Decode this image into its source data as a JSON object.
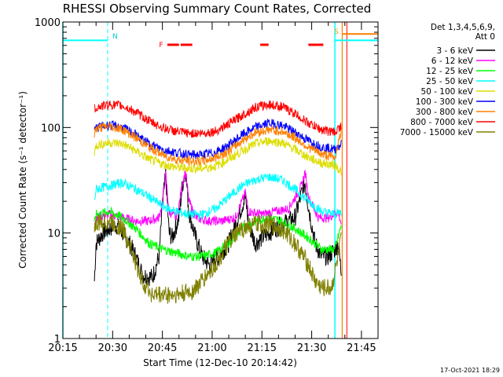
{
  "chart_data": {
    "type": "line",
    "title": "RHESSI Observing Summary Count Rates, Corrected",
    "xlabel": "Start Time (12-Dec-10 20:14:42)",
    "ylabel": "Corrected Count Rate (s⁻¹ detector⁻¹)",
    "y_scale": "log",
    "ylim": [
      1,
      1000
    ],
    "y_ticks": [
      1,
      10,
      100,
      1000
    ],
    "y_tick_labels": [
      "1",
      "10",
      "100",
      "1000"
    ],
    "xlim_minutes": [
      0,
      95
    ],
    "x_ticks": [
      {
        "t": 0,
        "label": "20:15"
      },
      {
        "t": 15,
        "label": "20:30"
      },
      {
        "t": 30,
        "label": "20:45"
      },
      {
        "t": 45,
        "label": "21:00"
      },
      {
        "t": 60,
        "label": "21:15"
      },
      {
        "t": 75,
        "label": "21:30"
      },
      {
        "t": 90,
        "label": "21:45"
      }
    ],
    "legend": {
      "header": [
        "Det 1,3,4,5,6,9,",
        "Att 0"
      ],
      "placement": "right"
    },
    "series": [
      {
        "name": "3 - 6 keV",
        "color": "#000000",
        "points": [
          [
            9.5,
            3.5
          ],
          [
            10,
            8
          ],
          [
            12,
            10
          ],
          [
            14,
            11
          ],
          [
            16,
            12
          ],
          [
            18,
            10
          ],
          [
            20,
            8
          ],
          [
            22,
            6
          ],
          [
            24,
            4
          ],
          [
            27,
            3.8
          ],
          [
            29,
            6
          ],
          [
            30,
            18
          ],
          [
            31,
            36
          ],
          [
            32,
            10
          ],
          [
            33,
            9
          ],
          [
            35,
            14
          ],
          [
            36,
            28
          ],
          [
            37,
            40
          ],
          [
            38,
            16
          ],
          [
            40,
            9
          ],
          [
            42,
            6
          ],
          [
            44,
            5
          ],
          [
            47,
            6
          ],
          [
            50,
            8
          ],
          [
            52,
            12
          ],
          [
            55,
            22
          ],
          [
            56,
            12
          ],
          [
            58,
            8
          ],
          [
            62,
            10
          ],
          [
            66,
            12
          ],
          [
            70,
            14
          ],
          [
            72,
            24
          ],
          [
            73,
            30
          ],
          [
            74,
            18
          ],
          [
            76,
            8
          ],
          [
            78,
            6
          ],
          [
            80,
            6
          ],
          [
            82,
            7
          ],
          [
            83,
            8
          ],
          [
            84,
            4
          ]
        ]
      },
      {
        "name": "6 - 12 keV",
        "color": "#ff00ff",
        "points": [
          [
            9.5,
            12
          ],
          [
            10,
            14
          ],
          [
            14,
            15
          ],
          [
            18,
            14
          ],
          [
            22,
            13
          ],
          [
            26,
            13
          ],
          [
            29,
            14
          ],
          [
            30,
            20
          ],
          [
            31,
            36
          ],
          [
            32,
            16
          ],
          [
            34,
            14
          ],
          [
            35,
            18
          ],
          [
            36,
            30
          ],
          [
            37,
            38
          ],
          [
            38,
            20
          ],
          [
            40,
            14
          ],
          [
            44,
            13
          ],
          [
            48,
            13
          ],
          [
            52,
            14
          ],
          [
            55,
            24
          ],
          [
            56,
            16
          ],
          [
            60,
            15
          ],
          [
            64,
            16
          ],
          [
            68,
            17
          ],
          [
            72,
            28
          ],
          [
            73,
            38
          ],
          [
            74,
            22
          ],
          [
            77,
            14
          ],
          [
            80,
            14
          ],
          [
            83,
            16
          ],
          [
            84,
            12
          ]
        ]
      },
      {
        "name": "12 - 25 keV",
        "color": "#00ff00",
        "points": [
          [
            9.5,
            12
          ],
          [
            10,
            15
          ],
          [
            14,
            16
          ],
          [
            18,
            14
          ],
          [
            22,
            11
          ],
          [
            26,
            8
          ],
          [
            30,
            7
          ],
          [
            34,
            6.5
          ],
          [
            38,
            6
          ],
          [
            42,
            6
          ],
          [
            46,
            6.5
          ],
          [
            50,
            8
          ],
          [
            54,
            11
          ],
          [
            58,
            13
          ],
          [
            62,
            14
          ],
          [
            66,
            13
          ],
          [
            70,
            11
          ],
          [
            74,
            9
          ],
          [
            78,
            7
          ],
          [
            82,
            7
          ],
          [
            84,
            12
          ]
        ]
      },
      {
        "name": "25 - 50 keV",
        "color": "#00ffff",
        "points": [
          [
            9.5,
            20
          ],
          [
            10,
            26
          ],
          [
            14,
            28
          ],
          [
            18,
            30
          ],
          [
            22,
            26
          ],
          [
            26,
            22
          ],
          [
            30,
            18
          ],
          [
            34,
            16
          ],
          [
            38,
            15
          ],
          [
            42,
            15
          ],
          [
            46,
            17
          ],
          [
            50,
            22
          ],
          [
            54,
            28
          ],
          [
            58,
            32
          ],
          [
            62,
            34
          ],
          [
            66,
            32
          ],
          [
            70,
            26
          ],
          [
            74,
            20
          ],
          [
            78,
            16
          ],
          [
            82,
            15
          ],
          [
            84,
            16
          ]
        ]
      },
      {
        "name": "50 - 100 keV",
        "color": "#dddd00",
        "points": [
          [
            9.5,
            55
          ],
          [
            10,
            68
          ],
          [
            14,
            72
          ],
          [
            18,
            70
          ],
          [
            22,
            60
          ],
          [
            26,
            50
          ],
          [
            30,
            45
          ],
          [
            34,
            42
          ],
          [
            38,
            41
          ],
          [
            42,
            41
          ],
          [
            46,
            43
          ],
          [
            50,
            50
          ],
          [
            54,
            60
          ],
          [
            58,
            70
          ],
          [
            62,
            75
          ],
          [
            66,
            72
          ],
          [
            70,
            62
          ],
          [
            74,
            52
          ],
          [
            78,
            46
          ],
          [
            82,
            44
          ],
          [
            84,
            38
          ]
        ]
      },
      {
        "name": "100 - 300 keV",
        "color": "#0000ff",
        "points": [
          [
            9.5,
            90
          ],
          [
            10,
            100
          ],
          [
            14,
            105
          ],
          [
            18,
            100
          ],
          [
            22,
            85
          ],
          [
            26,
            70
          ],
          [
            30,
            62
          ],
          [
            34,
            58
          ],
          [
            38,
            55
          ],
          [
            42,
            55
          ],
          [
            46,
            58
          ],
          [
            50,
            68
          ],
          [
            54,
            85
          ],
          [
            58,
            100
          ],
          [
            62,
            110
          ],
          [
            66,
            105
          ],
          [
            70,
            90
          ],
          [
            74,
            75
          ],
          [
            78,
            65
          ],
          [
            82,
            62
          ],
          [
            84,
            70
          ]
        ]
      },
      {
        "name": "300 - 800 keV",
        "color": "#ff8000",
        "points": [
          [
            9.5,
            85
          ],
          [
            10,
            98
          ],
          [
            14,
            103
          ],
          [
            18,
            96
          ],
          [
            22,
            80
          ],
          [
            26,
            65
          ],
          [
            30,
            55
          ],
          [
            34,
            50
          ],
          [
            38,
            48
          ],
          [
            42,
            48
          ],
          [
            46,
            52
          ],
          [
            50,
            60
          ],
          [
            54,
            75
          ],
          [
            58,
            90
          ],
          [
            62,
            95
          ],
          [
            66,
            92
          ],
          [
            70,
            80
          ],
          [
            74,
            65
          ],
          [
            78,
            56
          ],
          [
            82,
            52
          ],
          [
            84,
            95
          ]
        ]
      },
      {
        "name": "800 - 7000 keV",
        "color": "#ff0000",
        "points": [
          [
            9.5,
            150
          ],
          [
            10,
            155
          ],
          [
            14,
            165
          ],
          [
            18,
            160
          ],
          [
            22,
            140
          ],
          [
            26,
            115
          ],
          [
            30,
            100
          ],
          [
            34,
            92
          ],
          [
            38,
            88
          ],
          [
            42,
            88
          ],
          [
            46,
            92
          ],
          [
            50,
            108
          ],
          [
            54,
            130
          ],
          [
            58,
            155
          ],
          [
            62,
            165
          ],
          [
            66,
            158
          ],
          [
            70,
            135
          ],
          [
            74,
            110
          ],
          [
            78,
            95
          ],
          [
            82,
            90
          ],
          [
            84,
            105
          ]
        ]
      },
      {
        "name": "7000 - 15000 keV",
        "color": "#808000",
        "points": [
          [
            9.5,
            11
          ],
          [
            10,
            12
          ],
          [
            14,
            13
          ],
          [
            18,
            11
          ],
          [
            20,
            8
          ],
          [
            22,
            5
          ],
          [
            24,
            3.5
          ],
          [
            27,
            2.6
          ],
          [
            31,
            2.6
          ],
          [
            35,
            2.6
          ],
          [
            39,
            2.8
          ],
          [
            42,
            3.5
          ],
          [
            46,
            5
          ],
          [
            50,
            8
          ],
          [
            54,
            11
          ],
          [
            58,
            12
          ],
          [
            62,
            12
          ],
          [
            66,
            11
          ],
          [
            70,
            8
          ],
          [
            74,
            5
          ],
          [
            76,
            3.5
          ],
          [
            78,
            3
          ],
          [
            81,
            3
          ],
          [
            83,
            6
          ],
          [
            84,
            9
          ]
        ]
      }
    ],
    "annotations": {
      "flare_label": "F",
      "flare_intervals": [
        [
          31.5,
          35
        ],
        [
          35.5,
          39
        ],
        [
          59.5,
          62
        ],
        [
          74,
          78.5
        ]
      ],
      "flare_color": "#ff0000",
      "night_label": "N",
      "saa_label": "S",
      "attenuator_line_color": "#ff8000",
      "attenuator_line_level": 770,
      "cyan_top_level": 670,
      "cyan_vertical_dashed": [
        13.5,
        95
      ],
      "cyan_vertical_solid": [
        0,
        82
      ],
      "orange_vertical": [
        84.2
      ],
      "red_vertical": [
        85.6
      ]
    }
  },
  "footer": {
    "date_stamp": "17-Oct-2021 18:29"
  }
}
